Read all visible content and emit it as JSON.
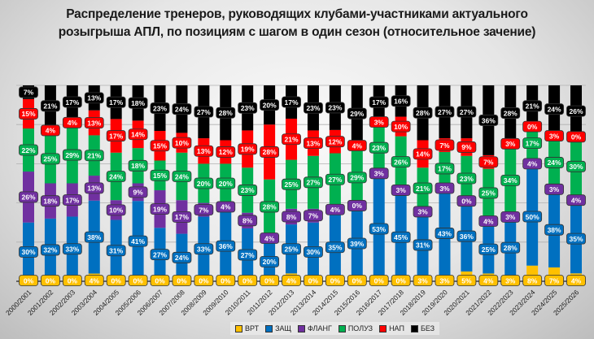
{
  "chart_data": {
    "type": "bar",
    "stacked": true,
    "title_lines": [
      "Распределение тренеров, руководящих клубами-участниками актуального",
      "розыгрыша АПЛ, по позициям с шагом в один сезон (относительное зачение)"
    ],
    "xlabel": "",
    "ylabel": "",
    "ylim": [
      0,
      100
    ],
    "grid": true,
    "legend_position": "bottom",
    "categories": [
      "2000/2001",
      "2001/2002",
      "2002/2003",
      "2003/2004",
      "2004/2005",
      "2005/2006",
      "2006/2007",
      "2007/2008",
      "2008/2009",
      "2009/2010",
      "2010/2011",
      "2011/2012",
      "2012/2013",
      "2013/2014",
      "2014/2015",
      "2015/2016",
      "2016/2017",
      "2017/2018",
      "2018/2019",
      "2019/2020",
      "2020/2021",
      "2021/2022",
      "2022/2023",
      "2023/2024",
      "2024/2025",
      "2025/2026"
    ],
    "series": [
      {
        "name": "ВРТ",
        "color": "#FFC000",
        "label_text_color": "#ffffff",
        "values": [
          0,
          0,
          0,
          4,
          0,
          0,
          0,
          0,
          0,
          0,
          0,
          0,
          4,
          0,
          0,
          0,
          0,
          0,
          3,
          3,
          5,
          4,
          3,
          8,
          7,
          4
        ]
      },
      {
        "name": "ЗАЩ",
        "color": "#0070C0",
        "label_text_color": "#ffffff",
        "values": [
          30,
          32,
          33,
          38,
          31,
          41,
          27,
          24,
          33,
          36,
          27,
          20,
          25,
          30,
          35,
          39,
          53,
          45,
          31,
          43,
          36,
          25,
          28,
          50,
          38,
          35
        ]
      },
      {
        "name": "ФЛАНГ",
        "color": "#7030A0",
        "label_text_color": "#ffffff",
        "values": [
          26,
          18,
          17,
          13,
          10,
          9,
          19,
          17,
          7,
          4,
          8,
          4,
          8,
          7,
          4,
          0,
          3,
          3,
          3,
          3,
          0,
          4,
          3,
          4,
          3,
          4
        ]
      },
      {
        "name": "ПОЛУЗ",
        "color": "#00B050",
        "label_text_color": "#ffffff",
        "values": [
          22,
          25,
          29,
          21,
          24,
          18,
          15,
          24,
          20,
          20,
          23,
          28,
          25,
          27,
          27,
          29,
          23,
          26,
          21,
          17,
          23,
          25,
          34,
          17,
          24,
          30
        ]
      },
      {
        "name": "НАП",
        "color": "#FF0000",
        "label_text_color": "#ffffff",
        "values": [
          15,
          4,
          4,
          13,
          17,
          14,
          15,
          10,
          13,
          12,
          19,
          28,
          21,
          13,
          12,
          4,
          3,
          10,
          14,
          7,
          9,
          7,
          3,
          0,
          3,
          0
        ]
      },
      {
        "name": "БЕЗ",
        "color": "#000000",
        "label_text_color": "#ffffff",
        "values": [
          7,
          21,
          17,
          13,
          17,
          18,
          23,
          24,
          27,
          28,
          23,
          20,
          17,
          23,
          23,
          29,
          17,
          16,
          28,
          27,
          27,
          36,
          28,
          21,
          24,
          26
        ]
      }
    ],
    "value_suffix": "%"
  }
}
